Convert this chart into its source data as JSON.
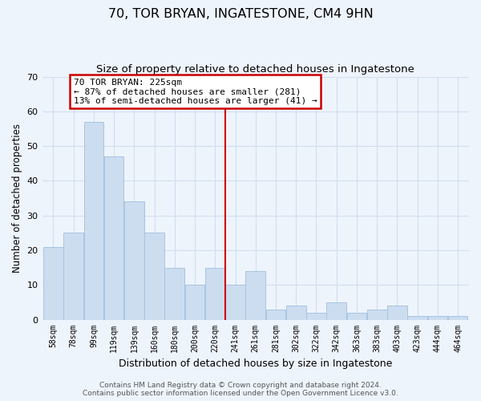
{
  "title": "70, TOR BRYAN, INGATESTONE, CM4 9HN",
  "subtitle": "Size of property relative to detached houses in Ingatestone",
  "xlabel": "Distribution of detached houses by size in Ingatestone",
  "ylabel": "Number of detached properties",
  "bar_labels": [
    "58sqm",
    "78sqm",
    "99sqm",
    "119sqm",
    "139sqm",
    "160sqm",
    "180sqm",
    "200sqm",
    "220sqm",
    "241sqm",
    "261sqm",
    "281sqm",
    "302sqm",
    "322sqm",
    "342sqm",
    "363sqm",
    "383sqm",
    "403sqm",
    "423sqm",
    "444sqm",
    "464sqm"
  ],
  "bar_values": [
    21,
    25,
    57,
    47,
    34,
    25,
    15,
    10,
    15,
    10,
    14,
    3,
    4,
    2,
    5,
    2,
    3,
    4,
    1,
    1,
    1
  ],
  "bar_color": "#ccddf0",
  "bar_edge_color": "#a8c4e0",
  "vline_x": 9.0,
  "vline_color": "#cc0000",
  "annotation_text": "70 TOR BRYAN: 225sqm\n← 87% of detached houses are smaller (281)\n13% of semi-detached houses are larger (41) →",
  "annotation_box_edgecolor": "#cc0000",
  "annotation_box_facecolor": "#ffffff",
  "ylim": [
    0,
    70
  ],
  "yticks": [
    0,
    10,
    20,
    30,
    40,
    50,
    60,
    70
  ],
  "footer_line1": "Contains HM Land Registry data © Crown copyright and database right 2024.",
  "footer_line2": "Contains public sector information licensed under the Open Government Licence v3.0.",
  "bg_color": "#eef4fc",
  "grid_color": "#d0dff0",
  "title_fontsize": 11.5,
  "subtitle_fontsize": 9.5,
  "xlabel_fontsize": 9,
  "ylabel_fontsize": 8.5,
  "footer_fontsize": 6.5
}
